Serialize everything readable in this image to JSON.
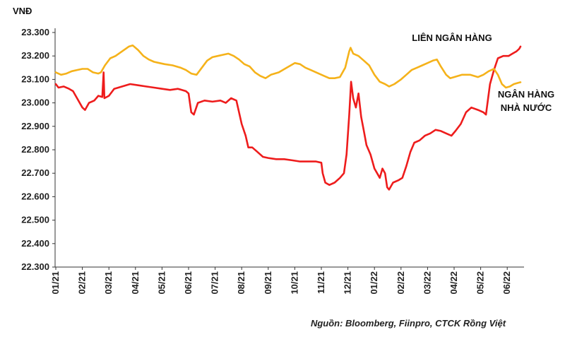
{
  "chart_data": {
    "type": "line",
    "ylabel": "VNĐ",
    "ylim": [
      22300,
      23300
    ],
    "yticks": [
      23300,
      23200,
      23100,
      23000,
      22900,
      22800,
      22700,
      22600,
      22500,
      22400,
      22300
    ],
    "ytick_labels": [
      "23.300",
      "23.200",
      "23.100",
      "23.000",
      "22.900",
      "22.800",
      "22.700",
      "22.600",
      "22.500",
      "22.400",
      "22.300"
    ],
    "categories": [
      "01/21",
      "02/21",
      "03/21",
      "04/21",
      "05/21",
      "06/21",
      "07/21",
      "08/21",
      "09/21",
      "10/21",
      "11/21",
      "12/21",
      "01/22",
      "02/22",
      "03/22",
      "04/22",
      "05/22",
      "06/22"
    ],
    "series": [
      {
        "name": "LIÊN NGÂN HÀNG",
        "color": "#ee1c1c",
        "points": [
          [
            0.0,
            23080
          ],
          [
            0.1,
            23065
          ],
          [
            0.3,
            23070
          ],
          [
            0.5,
            23060
          ],
          [
            0.65,
            23050
          ],
          [
            0.8,
            23020
          ],
          [
            1.0,
            22980
          ],
          [
            1.1,
            22970
          ],
          [
            1.25,
            23000
          ],
          [
            1.45,
            23010
          ],
          [
            1.6,
            23030
          ],
          [
            1.75,
            23025
          ],
          [
            1.8,
            23130
          ],
          [
            1.83,
            23020
          ],
          [
            2.0,
            23030
          ],
          [
            2.2,
            23060
          ],
          [
            2.5,
            23070
          ],
          [
            2.8,
            23080
          ],
          [
            3.1,
            23075
          ],
          [
            3.4,
            23070
          ],
          [
            3.7,
            23065
          ],
          [
            4.0,
            23060
          ],
          [
            4.3,
            23055
          ],
          [
            4.6,
            23060
          ],
          [
            4.9,
            23050
          ],
          [
            5.0,
            23040
          ],
          [
            5.1,
            22960
          ],
          [
            5.2,
            22950
          ],
          [
            5.35,
            23000
          ],
          [
            5.6,
            23010
          ],
          [
            5.9,
            23005
          ],
          [
            6.2,
            23010
          ],
          [
            6.4,
            23000
          ],
          [
            6.6,
            23020
          ],
          [
            6.8,
            23010
          ],
          [
            7.0,
            22910
          ],
          [
            7.15,
            22860
          ],
          [
            7.25,
            22810
          ],
          [
            7.4,
            22810
          ],
          [
            7.6,
            22790
          ],
          [
            7.8,
            22770
          ],
          [
            8.0,
            22765
          ],
          [
            8.3,
            22760
          ],
          [
            8.6,
            22760
          ],
          [
            8.9,
            22755
          ],
          [
            9.2,
            22750
          ],
          [
            9.5,
            22750
          ],
          [
            9.8,
            22750
          ],
          [
            10.0,
            22745
          ],
          [
            10.05,
            22700
          ],
          [
            10.15,
            22660
          ],
          [
            10.3,
            22650
          ],
          [
            10.5,
            22660
          ],
          [
            10.7,
            22680
          ],
          [
            10.85,
            22700
          ],
          [
            10.95,
            22780
          ],
          [
            11.05,
            22950
          ],
          [
            11.12,
            23090
          ],
          [
            11.2,
            23020
          ],
          [
            11.3,
            22980
          ],
          [
            11.4,
            23040
          ],
          [
            11.5,
            22940
          ],
          [
            11.6,
            22880
          ],
          [
            11.7,
            22820
          ],
          [
            11.85,
            22780
          ],
          [
            12.0,
            22720
          ],
          [
            12.1,
            22700
          ],
          [
            12.2,
            22680
          ],
          [
            12.3,
            22720
          ],
          [
            12.4,
            22700
          ],
          [
            12.48,
            22640
          ],
          [
            12.55,
            22630
          ],
          [
            12.7,
            22660
          ],
          [
            12.9,
            22670
          ],
          [
            13.05,
            22680
          ],
          [
            13.2,
            22730
          ],
          [
            13.35,
            22790
          ],
          [
            13.5,
            22830
          ],
          [
            13.7,
            22840
          ],
          [
            13.9,
            22860
          ],
          [
            14.1,
            22870
          ],
          [
            14.3,
            22885
          ],
          [
            14.5,
            22880
          ],
          [
            14.7,
            22870
          ],
          [
            14.9,
            22860
          ],
          [
            15.05,
            22880
          ],
          [
            15.25,
            22910
          ],
          [
            15.45,
            22960
          ],
          [
            15.65,
            22980
          ],
          [
            15.9,
            22970
          ],
          [
            16.1,
            22960
          ],
          [
            16.2,
            22950
          ],
          [
            16.35,
            23080
          ],
          [
            16.5,
            23140
          ],
          [
            16.65,
            23190
          ],
          [
            16.85,
            23200
          ],
          [
            17.05,
            23200
          ],
          [
            17.2,
            23210
          ],
          [
            17.35,
            23220
          ],
          [
            17.45,
            23230
          ],
          [
            17.5,
            23240
          ]
        ]
      },
      {
        "name": "NGÂN HÀNG NHÀ NƯỚC",
        "color": "#f5b21a",
        "points": [
          [
            0.0,
            23130
          ],
          [
            0.2,
            23120
          ],
          [
            0.4,
            23125
          ],
          [
            0.6,
            23135
          ],
          [
            0.8,
            23140
          ],
          [
            1.0,
            23145
          ],
          [
            1.2,
            23145
          ],
          [
            1.4,
            23130
          ],
          [
            1.6,
            23125
          ],
          [
            1.7,
            23130
          ],
          [
            1.85,
            23160
          ],
          [
            2.05,
            23190
          ],
          [
            2.25,
            23200
          ],
          [
            2.5,
            23220
          ],
          [
            2.75,
            23240
          ],
          [
            2.9,
            23245
          ],
          [
            3.1,
            23225
          ],
          [
            3.3,
            23200
          ],
          [
            3.5,
            23185
          ],
          [
            3.7,
            23175
          ],
          [
            3.9,
            23170
          ],
          [
            4.1,
            23165
          ],
          [
            4.4,
            23160
          ],
          [
            4.7,
            23150
          ],
          [
            4.9,
            23140
          ],
          [
            5.1,
            23125
          ],
          [
            5.3,
            23120
          ],
          [
            5.5,
            23150
          ],
          [
            5.7,
            23180
          ],
          [
            5.9,
            23195
          ],
          [
            6.1,
            23200
          ],
          [
            6.3,
            23205
          ],
          [
            6.5,
            23210
          ],
          [
            6.7,
            23200
          ],
          [
            6.9,
            23185
          ],
          [
            7.1,
            23165
          ],
          [
            7.3,
            23155
          ],
          [
            7.5,
            23130
          ],
          [
            7.7,
            23115
          ],
          [
            7.9,
            23105
          ],
          [
            8.1,
            23120
          ],
          [
            8.4,
            23130
          ],
          [
            8.7,
            23150
          ],
          [
            9.0,
            23170
          ],
          [
            9.2,
            23165
          ],
          [
            9.4,
            23150
          ],
          [
            9.6,
            23140
          ],
          [
            9.9,
            23125
          ],
          [
            10.1,
            23115
          ],
          [
            10.3,
            23105
          ],
          [
            10.5,
            23105
          ],
          [
            10.7,
            23110
          ],
          [
            10.9,
            23150
          ],
          [
            11.05,
            23220
          ],
          [
            11.1,
            23235
          ],
          [
            11.2,
            23210
          ],
          [
            11.4,
            23200
          ],
          [
            11.6,
            23180
          ],
          [
            11.8,
            23160
          ],
          [
            12.0,
            23120
          ],
          [
            12.2,
            23090
          ],
          [
            12.4,
            23080
          ],
          [
            12.55,
            23070
          ],
          [
            12.75,
            23080
          ],
          [
            13.0,
            23100
          ],
          [
            13.2,
            23120
          ],
          [
            13.4,
            23140
          ],
          [
            13.6,
            23150
          ],
          [
            13.8,
            23160
          ],
          [
            14.0,
            23170
          ],
          [
            14.2,
            23180
          ],
          [
            14.35,
            23185
          ],
          [
            14.5,
            23155
          ],
          [
            14.7,
            23120
          ],
          [
            14.85,
            23105
          ],
          [
            15.0,
            23110
          ],
          [
            15.3,
            23120
          ],
          [
            15.6,
            23120
          ],
          [
            15.9,
            23110
          ],
          [
            16.1,
            23120
          ],
          [
            16.3,
            23135
          ],
          [
            16.5,
            23145
          ],
          [
            16.65,
            23120
          ],
          [
            16.8,
            23080
          ],
          [
            16.95,
            23065
          ],
          [
            17.1,
            23070
          ],
          [
            17.25,
            23080
          ],
          [
            17.4,
            23085
          ],
          [
            17.5,
            23088
          ]
        ]
      }
    ],
    "annotations": [
      "NGÂN HÀNG",
      "NHÀ NƯỚC"
    ],
    "source": "Nguồn: Bloomberg, Fiinpro, CTCK Rồng Việt"
  }
}
